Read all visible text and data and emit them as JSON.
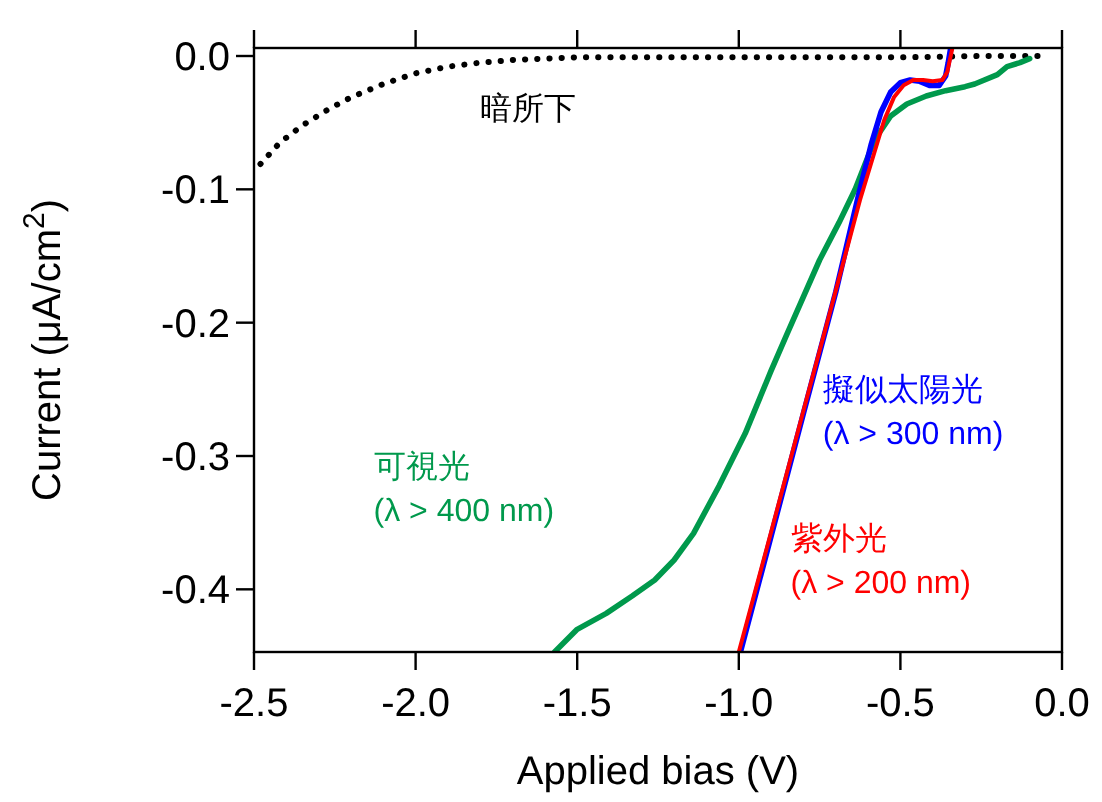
{
  "chart_data": {
    "type": "line",
    "xlabel": "Applied bias (V)",
    "ylabel": "Current (μA/cm$^{2}$)",
    "xlim": [
      -2.5,
      0
    ],
    "ylim": [
      -0.447,
      0.006
    ],
    "xticks": [
      {
        "value": -2.5,
        "label": "-2.5"
      },
      {
        "value": -2.0,
        "label": "-2.0"
      },
      {
        "value": -1.5,
        "label": "-1.5"
      },
      {
        "value": -1.0,
        "label": "-1.0"
      },
      {
        "value": -0.5,
        "label": "-0.5"
      },
      {
        "value": 0,
        "label": "0.0"
      }
    ],
    "yticks": [
      {
        "value": 0,
        "label": "0.0"
      },
      {
        "value": -0.1,
        "label": "-0.1"
      },
      {
        "value": -0.2,
        "label": "-0.2"
      },
      {
        "value": -0.3,
        "label": "-0.3"
      },
      {
        "value": -0.4,
        "label": "-0.4"
      }
    ],
    "grid": false,
    "legend": false,
    "series": [
      {
        "name": "暗所下",
        "color": "#000000",
        "line_style": "dotted",
        "x": [
          -2.48,
          -2.42,
          -2.35,
          -2.27,
          -2.2,
          -2.1,
          -2.0,
          -1.9,
          -1.8,
          -1.7,
          -1.6,
          -1.5,
          -1.25,
          -1.0,
          -0.75,
          -0.5,
          -0.25,
          -0.05
        ],
        "values": [
          -0.081,
          -0.065,
          -0.052,
          -0.04,
          -0.031,
          -0.021,
          -0.013,
          -0.008,
          -0.005,
          -0.003,
          -0.002,
          -0.001,
          -0.001,
          -0.001,
          -0.001,
          -0.001,
          0,
          0
        ]
      },
      {
        "name": "可視光\n(λ > 400 nm)",
        "color": "#00994c",
        "line_style": "solid",
        "x": [
          -1.57,
          -1.5,
          -1.41,
          -1.33,
          -1.26,
          -1.2,
          -1.14,
          -1.06,
          -0.98,
          -0.9,
          -0.85,
          -0.75,
          -0.69,
          -0.64,
          -0.58,
          -0.53,
          -0.48,
          -0.42,
          -0.36,
          -0.3,
          -0.27,
          -0.2,
          -0.17,
          -0.13,
          -0.1
        ],
        "values": [
          -0.447,
          -0.43,
          -0.418,
          -0.405,
          -0.393,
          -0.378,
          -0.358,
          -0.322,
          -0.283,
          -0.236,
          -0.208,
          -0.153,
          -0.125,
          -0.1,
          -0.063,
          -0.045,
          -0.036,
          -0.03,
          -0.026,
          -0.023,
          -0.021,
          -0.014,
          -0.008,
          -0.005,
          -0.002
        ]
      },
      {
        "name": "擬似太陽光\n(λ > 300 nm)",
        "color": "#0000ff",
        "line_style": "solid",
        "x": [
          -0.995,
          -0.9,
          -0.8,
          -0.7,
          -0.63,
          -0.59,
          -0.56,
          -0.53,
          -0.5,
          -0.47,
          -0.44,
          -0.41,
          -0.38,
          -0.36,
          -0.352,
          -0.345
        ],
        "values": [
          -0.447,
          -0.36,
          -0.268,
          -0.177,
          -0.105,
          -0.066,
          -0.042,
          -0.027,
          -0.02,
          -0.018,
          -0.019,
          -0.022,
          -0.022,
          -0.015,
          -0.005,
          0.005
        ]
      },
      {
        "name": "紫外光\n(λ > 200 nm)",
        "color": "#ff0000",
        "line_style": "solid",
        "x": [
          -1.0,
          -0.9,
          -0.8,
          -0.7,
          -0.625,
          -0.58,
          -0.55,
          -0.52,
          -0.49,
          -0.46,
          -0.43,
          -0.4,
          -0.37,
          -0.355,
          -0.348,
          -0.34
        ],
        "values": [
          -0.447,
          -0.357,
          -0.266,
          -0.176,
          -0.108,
          -0.072,
          -0.048,
          -0.031,
          -0.022,
          -0.018,
          -0.018,
          -0.019,
          -0.018,
          -0.012,
          -0.004,
          0.005
        ]
      }
    ]
  }
}
